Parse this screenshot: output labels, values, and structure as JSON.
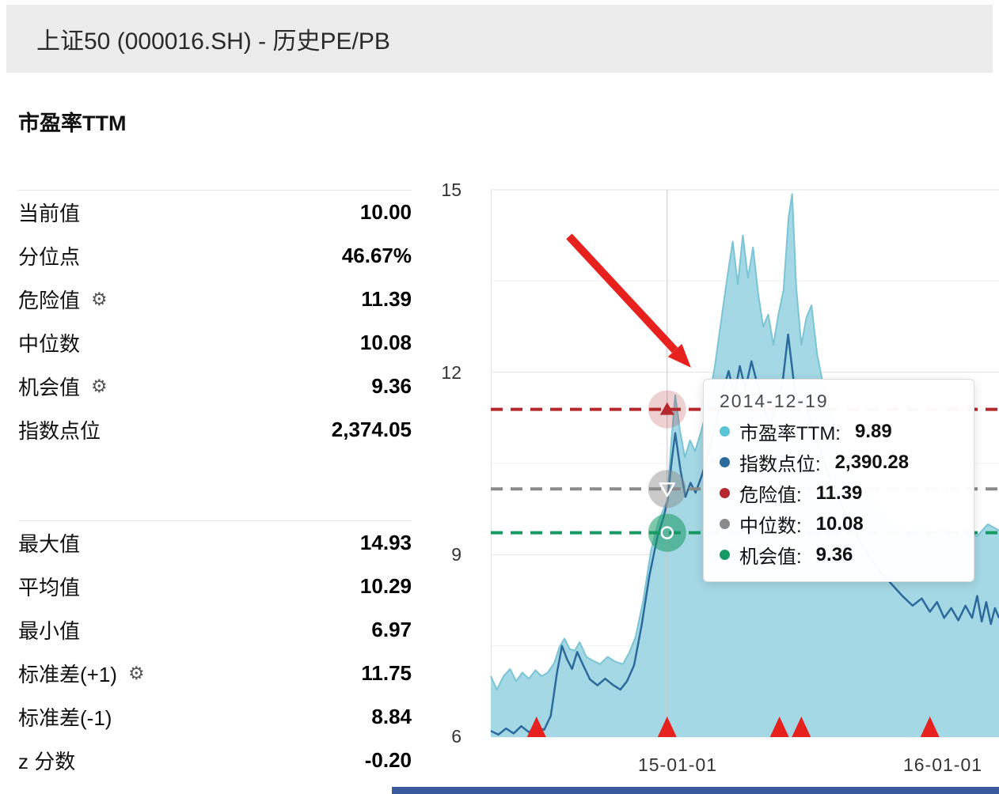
{
  "header": {
    "title": "上证50 (000016.SH) - 历史PE/PB"
  },
  "stats": {
    "section_title": "市盈率TTM",
    "group1": [
      {
        "label": "当前值",
        "value": "10.00"
      },
      {
        "label": "分位点",
        "value": "46.67%"
      },
      {
        "label": "危险值",
        "value": "11.39"
      },
      {
        "label": "中位数",
        "value": "10.08"
      },
      {
        "label": "机会值",
        "value": "9.36"
      },
      {
        "label": "指数点位",
        "value": "2,374.05"
      }
    ],
    "group2": [
      {
        "label": "最大值",
        "value": "14.93"
      },
      {
        "label": "平均值",
        "value": "10.29"
      },
      {
        "label": "最小值",
        "value": "6.97"
      },
      {
        "label": "标准差(+1)",
        "value": "11.75"
      },
      {
        "label": "标准差(-1)",
        "value": "8.84"
      },
      {
        "label": "z 分数",
        "value": "-0.20"
      }
    ],
    "gear_icon": "⚙"
  },
  "chart_data": {
    "type": "area",
    "title": "",
    "xlabel": "",
    "ylabel": "",
    "ylim": [
      6,
      15
    ],
    "yticks": [
      15,
      12,
      9,
      6
    ],
    "yticks_minor": [
      13.5,
      10.5,
      7.5
    ],
    "xticks": [
      {
        "label": "15-01-01",
        "pos": 0.366
      },
      {
        "label": "16-01-01",
        "pos": 0.888
      }
    ],
    "grid": true,
    "crosshair": {
      "pos": 0.347,
      "date": "2014-12-19"
    },
    "reference_lines": [
      {
        "name": "危险值",
        "value": 11.39,
        "color": "#b5292c",
        "style": "dashed",
        "marker": "up-triangle",
        "halo_opacity": 0.22
      },
      {
        "name": "中位数",
        "value": 10.08,
        "color": "#8a8a8a",
        "style": "dashed",
        "marker": "down-triangle",
        "halo_opacity": 0.45
      },
      {
        "name": "机会值",
        "value": 9.36,
        "color": "#169a63",
        "style": "dashed",
        "marker": "circle",
        "halo_opacity": 0.55
      }
    ],
    "series": [
      {
        "name": "市盈率TTM",
        "kind": "area",
        "color": "#a4d8e4",
        "line_color": "#79c5d6",
        "points": [
          [
            0.0,
            7.0
          ],
          [
            0.012,
            6.78
          ],
          [
            0.025,
            7.0
          ],
          [
            0.038,
            7.12
          ],
          [
            0.05,
            6.92
          ],
          [
            0.062,
            7.06
          ],
          [
            0.075,
            6.96
          ],
          [
            0.088,
            7.1
          ],
          [
            0.1,
            7.0
          ],
          [
            0.112,
            7.06
          ],
          [
            0.125,
            7.22
          ],
          [
            0.135,
            7.48
          ],
          [
            0.145,
            7.62
          ],
          [
            0.155,
            7.45
          ],
          [
            0.165,
            7.42
          ],
          [
            0.175,
            7.56
          ],
          [
            0.188,
            7.32
          ],
          [
            0.2,
            7.26
          ],
          [
            0.215,
            7.2
          ],
          [
            0.23,
            7.32
          ],
          [
            0.245,
            7.24
          ],
          [
            0.26,
            7.2
          ],
          [
            0.272,
            7.38
          ],
          [
            0.285,
            7.65
          ],
          [
            0.3,
            8.25
          ],
          [
            0.315,
            9.05
          ],
          [
            0.33,
            9.55
          ],
          [
            0.34,
            9.75
          ],
          [
            0.347,
            9.89
          ],
          [
            0.356,
            10.95
          ],
          [
            0.363,
            11.62
          ],
          [
            0.372,
            11.05
          ],
          [
            0.382,
            10.6
          ],
          [
            0.392,
            10.88
          ],
          [
            0.402,
            10.7
          ],
          [
            0.413,
            11.0
          ],
          [
            0.427,
            11.45
          ],
          [
            0.441,
            12.1
          ],
          [
            0.455,
            12.95
          ],
          [
            0.466,
            13.6
          ],
          [
            0.476,
            14.15
          ],
          [
            0.486,
            13.45
          ],
          [
            0.496,
            14.25
          ],
          [
            0.506,
            13.55
          ],
          [
            0.516,
            14.05
          ],
          [
            0.526,
            13.3
          ],
          [
            0.536,
            12.75
          ],
          [
            0.546,
            12.95
          ],
          [
            0.556,
            12.45
          ],
          [
            0.566,
            12.95
          ],
          [
            0.576,
            13.35
          ],
          [
            0.586,
            14.55
          ],
          [
            0.593,
            14.93
          ],
          [
            0.601,
            13.4
          ],
          [
            0.611,
            12.45
          ],
          [
            0.621,
            12.9
          ],
          [
            0.631,
            13.1
          ],
          [
            0.642,
            12.3
          ],
          [
            0.656,
            11.7
          ],
          [
            0.672,
            11.2
          ],
          [
            0.69,
            10.75
          ],
          [
            0.71,
            10.35
          ],
          [
            0.732,
            10.05
          ],
          [
            0.755,
            9.85
          ],
          [
            0.778,
            9.62
          ],
          [
            0.8,
            9.45
          ],
          [
            0.822,
            9.3
          ],
          [
            0.845,
            9.48
          ],
          [
            0.868,
            9.28
          ],
          [
            0.89,
            9.45
          ],
          [
            0.912,
            9.28
          ],
          [
            0.934,
            9.45
          ],
          [
            0.956,
            9.3
          ],
          [
            0.978,
            9.5
          ],
          [
            1.0,
            9.4
          ]
        ]
      },
      {
        "name": "指数点位",
        "kind": "line",
        "color": "#2b6a9d",
        "points": [
          [
            0.0,
            6.1
          ],
          [
            0.015,
            6.04
          ],
          [
            0.03,
            6.14
          ],
          [
            0.045,
            6.06
          ],
          [
            0.06,
            6.18
          ],
          [
            0.075,
            6.08
          ],
          [
            0.09,
            6.16
          ],
          [
            0.105,
            6.12
          ],
          [
            0.118,
            6.35
          ],
          [
            0.13,
            7.05
          ],
          [
            0.14,
            7.5
          ],
          [
            0.15,
            7.28
          ],
          [
            0.16,
            7.12
          ],
          [
            0.17,
            7.4
          ],
          [
            0.182,
            7.18
          ],
          [
            0.195,
            6.95
          ],
          [
            0.21,
            6.85
          ],
          [
            0.225,
            6.96
          ],
          [
            0.24,
            6.86
          ],
          [
            0.255,
            6.78
          ],
          [
            0.268,
            6.92
          ],
          [
            0.282,
            7.18
          ],
          [
            0.297,
            7.85
          ],
          [
            0.312,
            8.65
          ],
          [
            0.328,
            9.3
          ],
          [
            0.34,
            9.62
          ],
          [
            0.347,
            9.85
          ],
          [
            0.356,
            10.55
          ],
          [
            0.363,
            11.0
          ],
          [
            0.373,
            10.4
          ],
          [
            0.383,
            9.95
          ],
          [
            0.393,
            10.18
          ],
          [
            0.403,
            10.02
          ],
          [
            0.416,
            10.32
          ],
          [
            0.43,
            10.72
          ],
          [
            0.444,
            11.2
          ],
          [
            0.457,
            11.7
          ],
          [
            0.468,
            12.02
          ],
          [
            0.479,
            11.62
          ],
          [
            0.49,
            12.1
          ],
          [
            0.501,
            11.72
          ],
          [
            0.513,
            12.18
          ],
          [
            0.525,
            11.78
          ],
          [
            0.538,
            11.42
          ],
          [
            0.55,
            11.12
          ],
          [
            0.562,
            11.46
          ],
          [
            0.574,
            11.82
          ],
          [
            0.585,
            12.62
          ],
          [
            0.595,
            11.92
          ],
          [
            0.606,
            11.35
          ],
          [
            0.617,
            11.58
          ],
          [
            0.628,
            11.22
          ],
          [
            0.642,
            10.85
          ],
          [
            0.66,
            10.42
          ],
          [
            0.68,
            10.02
          ],
          [
            0.7,
            9.62
          ],
          [
            0.722,
            9.28
          ],
          [
            0.744,
            8.98
          ],
          [
            0.766,
            8.72
          ],
          [
            0.788,
            8.52
          ],
          [
            0.81,
            8.32
          ],
          [
            0.83,
            8.16
          ],
          [
            0.848,
            8.28
          ],
          [
            0.864,
            8.06
          ],
          [
            0.878,
            8.22
          ],
          [
            0.892,
            7.96
          ],
          [
            0.906,
            8.12
          ],
          [
            0.92,
            7.92
          ],
          [
            0.934,
            8.16
          ],
          [
            0.947,
            7.96
          ],
          [
            0.957,
            8.32
          ],
          [
            0.966,
            7.9
          ],
          [
            0.975,
            8.22
          ],
          [
            0.984,
            7.86
          ],
          [
            0.992,
            8.12
          ],
          [
            1.0,
            7.96
          ]
        ]
      }
    ],
    "event_markers": {
      "color": "#e6211e",
      "positions": [
        0.09,
        0.347,
        0.568,
        0.611,
        0.864
      ]
    },
    "annotation_arrow": {
      "from": [
        0.154,
        0.085
      ],
      "to": [
        0.394,
        0.325
      ],
      "color": "#e6211e"
    }
  },
  "tooltip": {
    "date": "2014-12-19",
    "rows": [
      {
        "label": "市盈率TTM:",
        "value": "9.89",
        "color": "#59c4d6"
      },
      {
        "label": "指数点位:",
        "value": "2,390.28",
        "color": "#2b6a9d"
      },
      {
        "label": "危险值:",
        "value": "11.39",
        "color": "#b5292c"
      },
      {
        "label": "中位数:",
        "value": "10.08",
        "color": "#8a8a8a"
      },
      {
        "label": "机会值:",
        "value": "9.36",
        "color": "#169a63"
      }
    ]
  }
}
